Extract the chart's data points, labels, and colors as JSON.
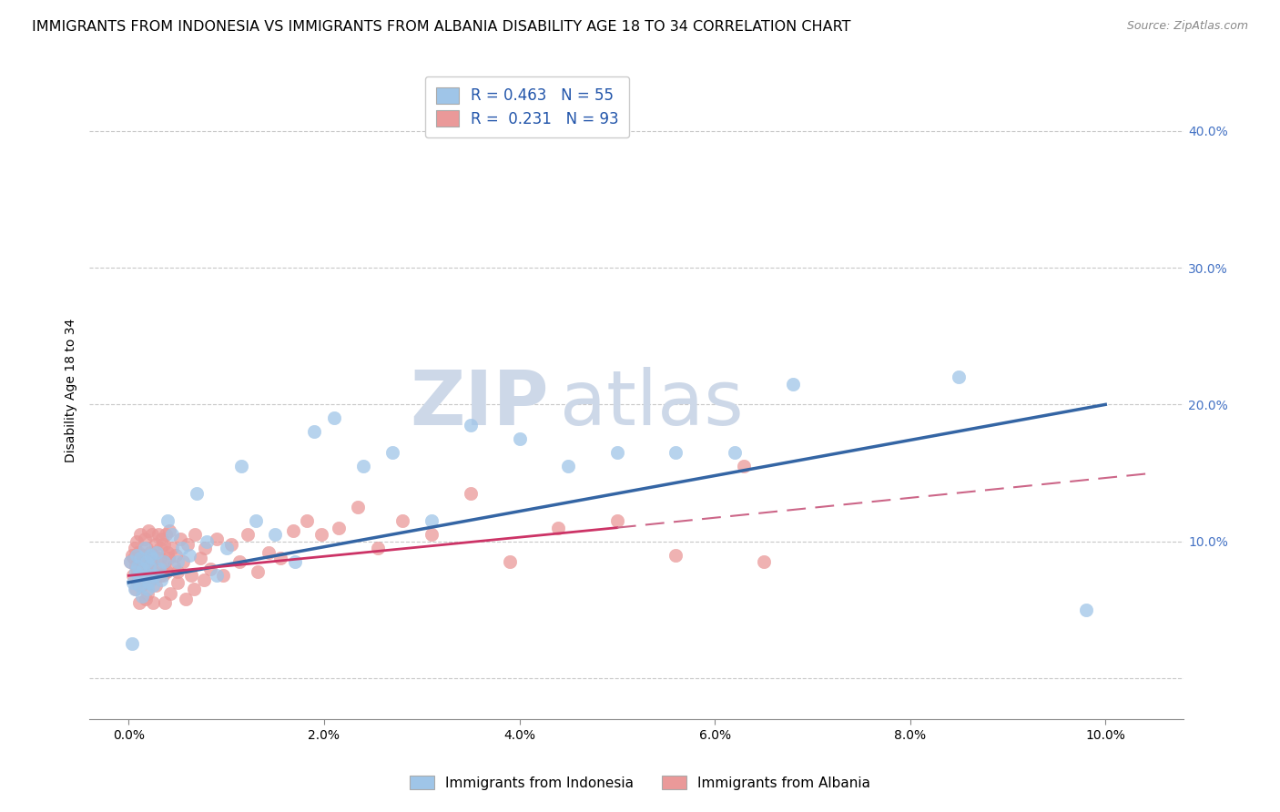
{
  "title": "IMMIGRANTS FROM INDONESIA VS IMMIGRANTS FROM ALBANIA DISABILITY AGE 18 TO 34 CORRELATION CHART",
  "source": "Source: ZipAtlas.com",
  "ylabel": "Disability Age 18 to 34",
  "x_tick_labels": [
    "0.0%",
    "2.0%",
    "4.0%",
    "6.0%",
    "8.0%",
    "10.0%"
  ],
  "x_tick_values": [
    0.0,
    2.0,
    4.0,
    6.0,
    8.0,
    10.0
  ],
  "y_tick_labels": [
    "",
    "10.0%",
    "20.0%",
    "30.0%",
    "40.0%"
  ],
  "y_tick_values": [
    0.0,
    10.0,
    20.0,
    30.0,
    40.0
  ],
  "xlim": [
    -0.4,
    10.8
  ],
  "ylim": [
    -3.0,
    45.0
  ],
  "legend_label_blue": "Immigrants from Indonesia",
  "legend_label_pink": "Immigrants from Albania",
  "blue_color": "#9fc5e8",
  "pink_color": "#ea9999",
  "blue_line_color": "#3465a4",
  "pink_line_color": "#cc3366",
  "pink_dash_color": "#cc6688",
  "watermark_zip": "ZIP",
  "watermark_atlas": "atlas",
  "watermark_color": "#cdd8e8",
  "title_fontsize": 11.5,
  "axis_label_fontsize": 10,
  "tick_fontsize": 10,
  "right_tick_color": "#4472c4",
  "indonesia_x": [
    0.02,
    0.04,
    0.06,
    0.07,
    0.08,
    0.09,
    0.1,
    0.11,
    0.12,
    0.13,
    0.14,
    0.15,
    0.16,
    0.17,
    0.18,
    0.19,
    0.2,
    0.21,
    0.22,
    0.23,
    0.24,
    0.25,
    0.27,
    0.29,
    0.31,
    0.33,
    0.36,
    0.4,
    0.44,
    0.5,
    0.55,
    0.62,
    0.7,
    0.8,
    0.9,
    1.0,
    1.15,
    1.3,
    1.5,
    1.7,
    1.9,
    2.1,
    2.4,
    2.7,
    3.1,
    3.5,
    4.0,
    4.5,
    5.0,
    5.6,
    6.2,
    6.8,
    8.5,
    9.8,
    0.03
  ],
  "indonesia_y": [
    8.5,
    7.0,
    6.5,
    7.8,
    9.0,
    8.2,
    7.5,
    6.8,
    8.8,
    7.2,
    6.0,
    8.0,
    9.5,
    7.5,
    8.5,
    6.5,
    7.0,
    8.2,
    9.0,
    7.5,
    8.8,
    6.8,
    7.5,
    9.2,
    8.0,
    7.2,
    8.5,
    11.5,
    10.5,
    8.5,
    9.5,
    9.0,
    13.5,
    10.0,
    7.5,
    9.5,
    15.5,
    11.5,
    10.5,
    8.5,
    18.0,
    19.0,
    15.5,
    16.5,
    11.5,
    18.5,
    17.5,
    15.5,
    16.5,
    16.5,
    16.5,
    21.5,
    22.0,
    5.0,
    2.5
  ],
  "albania_x": [
    0.02,
    0.03,
    0.04,
    0.05,
    0.06,
    0.07,
    0.08,
    0.09,
    0.1,
    0.11,
    0.12,
    0.13,
    0.14,
    0.15,
    0.16,
    0.17,
    0.18,
    0.19,
    0.2,
    0.21,
    0.22,
    0.23,
    0.24,
    0.25,
    0.26,
    0.27,
    0.28,
    0.29,
    0.3,
    0.31,
    0.32,
    0.33,
    0.34,
    0.35,
    0.36,
    0.37,
    0.38,
    0.39,
    0.4,
    0.41,
    0.42,
    0.44,
    0.46,
    0.48,
    0.5,
    0.53,
    0.56,
    0.6,
    0.64,
    0.68,
    0.73,
    0.78,
    0.84,
    0.9,
    0.97,
    1.05,
    1.13,
    1.22,
    1.32,
    1.43,
    1.55,
    1.68,
    1.82,
    1.97,
    2.15,
    2.35,
    2.55,
    2.8,
    3.1,
    3.5,
    3.9,
    4.4,
    5.0,
    5.6,
    6.3,
    6.5,
    0.07,
    0.09,
    0.11,
    0.13,
    0.15,
    0.17,
    0.19,
    0.22,
    0.25,
    0.28,
    0.32,
    0.37,
    0.43,
    0.5,
    0.58,
    0.67,
    0.77
  ],
  "albania_y": [
    8.5,
    9.0,
    7.5,
    8.8,
    9.5,
    8.2,
    10.0,
    7.8,
    9.2,
    8.5,
    10.5,
    7.5,
    9.0,
    8.8,
    10.2,
    7.2,
    9.5,
    8.0,
    10.8,
    7.5,
    9.2,
    8.5,
    10.5,
    7.8,
    9.0,
    8.2,
    9.8,
    7.5,
    10.5,
    8.8,
    9.5,
    8.0,
    10.2,
    7.5,
    9.8,
    8.5,
    10.5,
    7.8,
    9.2,
    8.8,
    10.8,
    9.5,
    8.2,
    9.0,
    7.8,
    10.2,
    8.5,
    9.8,
    7.5,
    10.5,
    8.8,
    9.5,
    8.0,
    10.2,
    7.5,
    9.8,
    8.5,
    10.5,
    7.8,
    9.2,
    8.8,
    10.8,
    11.5,
    10.5,
    11.0,
    12.5,
    9.5,
    11.5,
    10.5,
    13.5,
    8.5,
    11.0,
    11.5,
    9.0,
    15.5,
    8.5,
    6.5,
    7.0,
    5.5,
    6.8,
    7.5,
    5.8,
    6.2,
    7.2,
    5.5,
    6.8,
    7.5,
    5.5,
    6.2,
    7.0,
    5.8,
    6.5,
    7.2
  ],
  "blue_line_x0": 0.0,
  "blue_line_y0": 7.0,
  "blue_line_x1": 10.0,
  "blue_line_y1": 20.0,
  "pink_solid_x0": 0.0,
  "pink_solid_y0": 7.5,
  "pink_solid_x1": 5.0,
  "pink_solid_y1": 11.0,
  "pink_dash_x0": 5.0,
  "pink_dash_y0": 11.0,
  "pink_dash_x1": 10.5,
  "pink_dash_y1": 15.0
}
